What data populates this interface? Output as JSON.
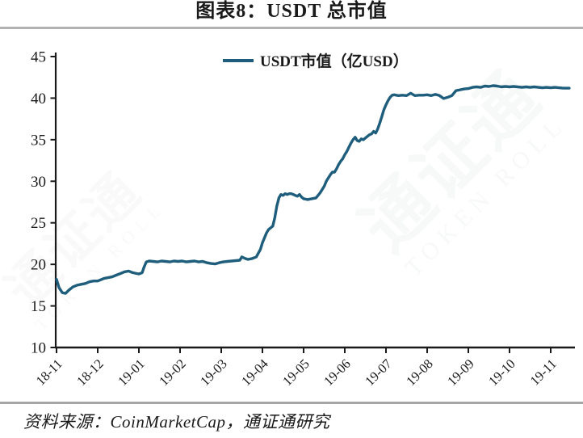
{
  "page": {
    "title": "图表8：USDT 总市值",
    "source": "资料来源：CoinMarketCap，通证通研究"
  },
  "watermark": {
    "cn": "通证通",
    "en": "TOKEN ROLL"
  },
  "chart_data": {
    "type": "line",
    "title": "图表8：USDT 总市值",
    "xlabel": "",
    "ylabel": "",
    "legend_position": "top-center",
    "grid": false,
    "line_color": "#1e5d7b",
    "axis_color": "#1a1a1a",
    "ylim": [
      10,
      45
    ],
    "y_ticks": [
      10,
      15,
      20,
      25,
      30,
      35,
      40,
      45
    ],
    "x_tick_labels": [
      "18-11",
      "18-12",
      "19-01",
      "19-02",
      "19-03",
      "19-04",
      "19-05",
      "19-06",
      "19-07",
      "19-08",
      "19-09",
      "19-10",
      "19-11"
    ],
    "x_axis_extent_idx": 12.6,
    "series": [
      {
        "name": "USDT市值（亿USD）",
        "x": [
          0,
          0.06,
          0.14,
          0.22,
          0.3,
          0.4,
          0.5,
          0.6,
          0.7,
          0.8,
          0.9,
          1.0,
          1.05,
          1.15,
          1.25,
          1.35,
          1.45,
          1.55,
          1.65,
          1.75,
          1.85,
          1.95,
          2.0,
          2.08,
          2.12,
          2.18,
          2.25,
          2.35,
          2.45,
          2.55,
          2.65,
          2.75,
          2.85,
          2.95,
          3.05,
          3.15,
          3.25,
          3.35,
          3.45,
          3.55,
          3.65,
          3.75,
          3.85,
          3.95,
          4.05,
          4.15,
          4.25,
          4.35,
          4.45,
          4.5,
          4.58,
          4.65,
          4.75,
          4.85,
          4.95,
          5.0,
          5.05,
          5.1,
          5.15,
          5.2,
          5.25,
          5.3,
          5.35,
          5.4,
          5.45,
          5.5,
          5.55,
          5.6,
          5.65,
          5.7,
          5.75,
          5.8,
          5.85,
          5.9,
          5.95,
          6.0,
          6.1,
          6.2,
          6.3,
          6.4,
          6.5,
          6.55,
          6.6,
          6.65,
          6.7,
          6.75,
          6.8,
          6.85,
          6.9,
          6.95,
          7.0,
          7.05,
          7.1,
          7.15,
          7.2,
          7.25,
          7.3,
          7.35,
          7.4,
          7.45,
          7.5,
          7.55,
          7.6,
          7.65,
          7.7,
          7.75,
          7.8,
          7.85,
          7.9,
          7.95,
          8.0,
          8.05,
          8.1,
          8.15,
          8.2,
          8.3,
          8.4,
          8.5,
          8.6,
          8.7,
          8.8,
          8.9,
          9.0,
          9.1,
          9.2,
          9.3,
          9.4,
          9.5,
          9.6,
          9.7,
          9.8,
          9.9,
          10.0,
          10.1,
          10.2,
          10.3,
          10.4,
          10.5,
          10.6,
          10.7,
          10.8,
          10.9,
          11.0,
          11.1,
          11.2,
          11.3,
          11.4,
          11.5,
          11.6,
          11.7,
          11.8,
          11.9,
          12.0,
          12.1,
          12.2,
          12.3,
          12.45
        ],
        "y": [
          18.2,
          17.2,
          16.6,
          16.5,
          16.9,
          17.3,
          17.5,
          17.6,
          17.7,
          17.9,
          18.0,
          18.0,
          18.1,
          18.3,
          18.4,
          18.5,
          18.7,
          18.9,
          19.1,
          19.2,
          19.0,
          18.9,
          18.85,
          19.0,
          19.6,
          20.3,
          20.4,
          20.35,
          20.3,
          20.4,
          20.35,
          20.3,
          20.4,
          20.35,
          20.4,
          20.3,
          20.35,
          20.4,
          20.3,
          20.35,
          20.2,
          20.1,
          20.05,
          20.2,
          20.3,
          20.35,
          20.4,
          20.45,
          20.5,
          20.9,
          20.7,
          20.6,
          20.7,
          20.9,
          21.8,
          22.6,
          23.2,
          23.8,
          24.2,
          24.4,
          24.6,
          25.6,
          27.0,
          28.0,
          28.4,
          28.3,
          28.5,
          28.4,
          28.5,
          28.5,
          28.4,
          28.3,
          28.2,
          28.4,
          28.1,
          27.9,
          27.8,
          27.9,
          28.0,
          28.6,
          29.4,
          30.0,
          30.4,
          30.8,
          31.1,
          31.1,
          31.5,
          32.0,
          32.4,
          32.7,
          33.2,
          33.6,
          34.1,
          34.6,
          35.0,
          35.3,
          34.9,
          34.8,
          35.1,
          35.0,
          35.2,
          35.4,
          35.6,
          35.7,
          36.0,
          35.8,
          36.3,
          37.0,
          37.8,
          38.6,
          39.2,
          39.7,
          40.1,
          40.35,
          40.4,
          40.3,
          40.35,
          40.3,
          40.6,
          40.3,
          40.35,
          40.35,
          40.4,
          40.3,
          40.45,
          40.3,
          39.95,
          40.1,
          40.3,
          40.9,
          41.0,
          41.1,
          41.15,
          41.3,
          41.35,
          41.3,
          41.45,
          41.4,
          41.5,
          41.45,
          41.35,
          41.4,
          41.35,
          41.4,
          41.35,
          41.3,
          41.35,
          41.3,
          41.35,
          41.3,
          41.25,
          41.3,
          41.25,
          41.3,
          41.25,
          41.2,
          41.2
        ]
      }
    ]
  }
}
